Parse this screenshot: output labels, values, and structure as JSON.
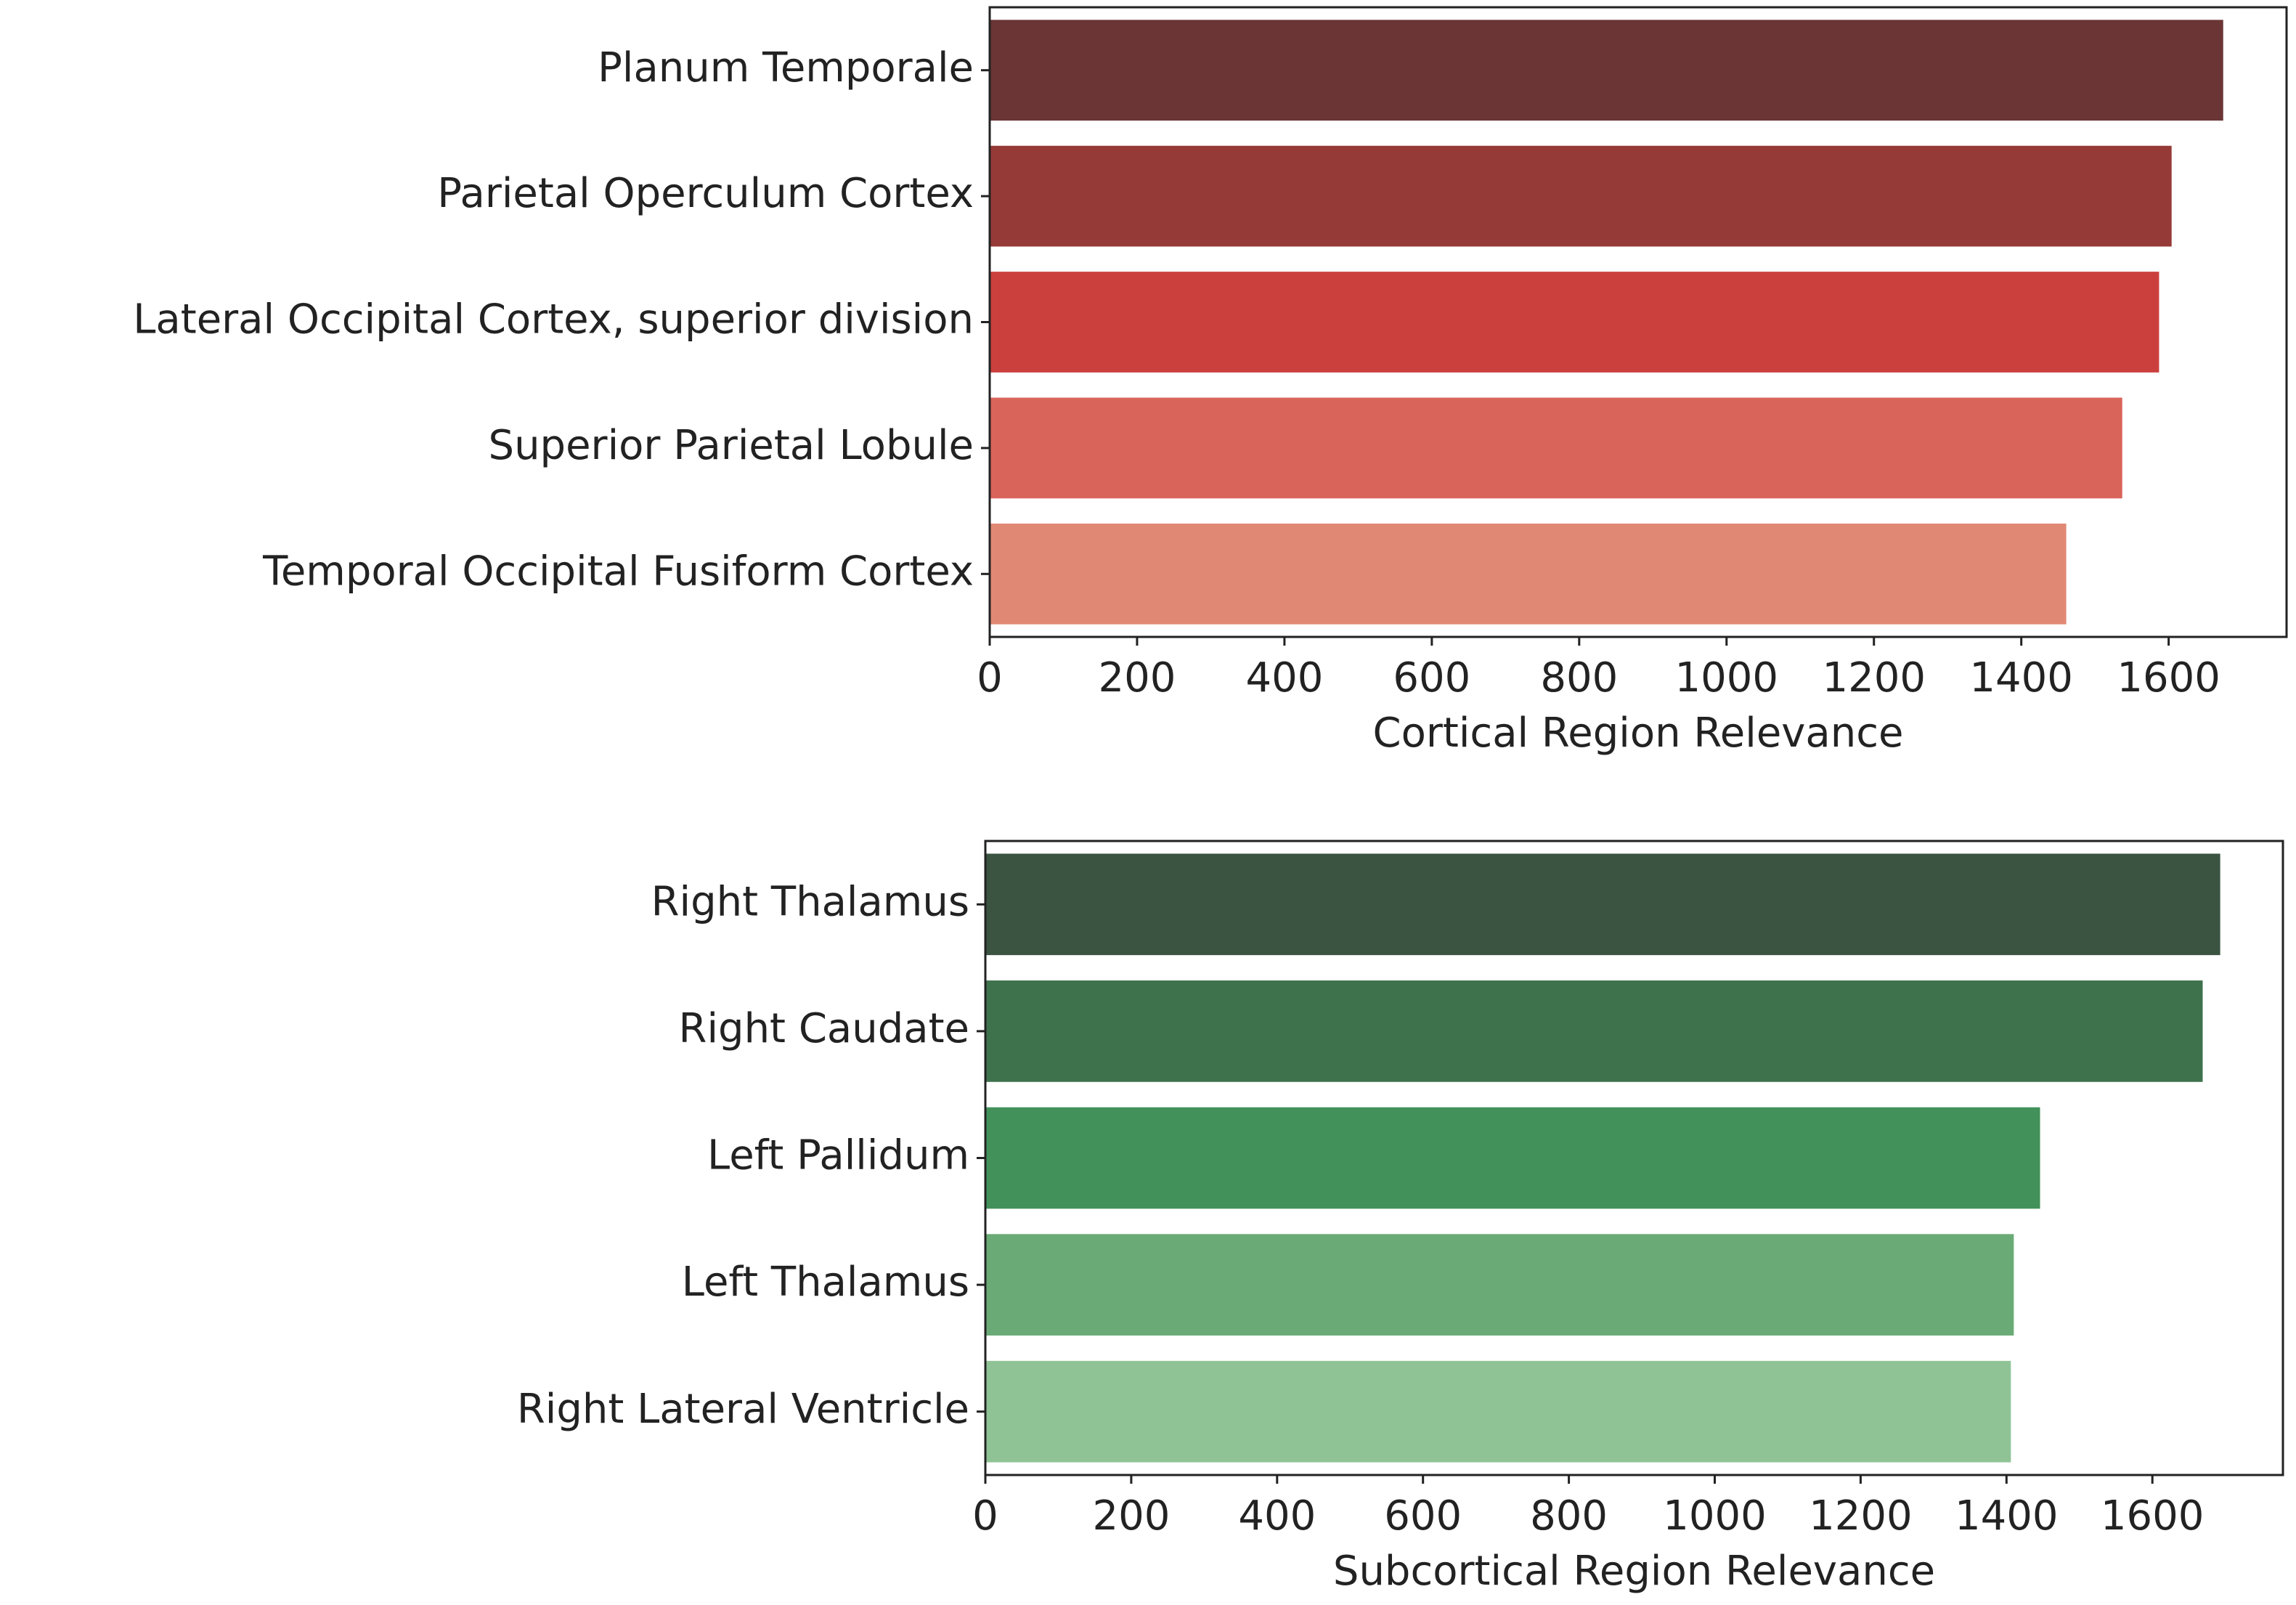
{
  "chart_data": [
    {
      "type": "bar",
      "orientation": "horizontal",
      "categories": [
        "Planum Temporale",
        "Parietal Operculum Cortex",
        "Lateral Occipital Cortex, superior division",
        "Superior Parietal Lobule",
        "Temporal Occipital Fusiform Cortex"
      ],
      "values": [
        1674,
        1604,
        1587,
        1537,
        1461
      ],
      "colors": [
        "#6b3535",
        "#963a37",
        "#cb403d",
        "#d9645a",
        "#e18875"
      ],
      "xlim": [
        0,
        1760
      ],
      "xticks": [
        0,
        200,
        400,
        600,
        800,
        1000,
        1200,
        1400,
        1600
      ],
      "x_label": "Cortical Region Relevance"
    },
    {
      "type": "bar",
      "orientation": "horizontal",
      "categories": [
        "Right Thalamus",
        "Right Caudate",
        "Left Pallidum",
        "Left Thalamus",
        "Right Lateral Ventricle"
      ],
      "values": [
        1693,
        1669,
        1446,
        1410,
        1406
      ],
      "colors": [
        "#3a5441",
        "#3e724d",
        "#42915a",
        "#6aaa76",
        "#8fc395"
      ],
      "xlim": [
        0,
        1779
      ],
      "xticks": [
        0,
        200,
        400,
        600,
        800,
        1000,
        1200,
        1400,
        1600
      ],
      "x_label": "Subcortical Region Relevance"
    }
  ]
}
